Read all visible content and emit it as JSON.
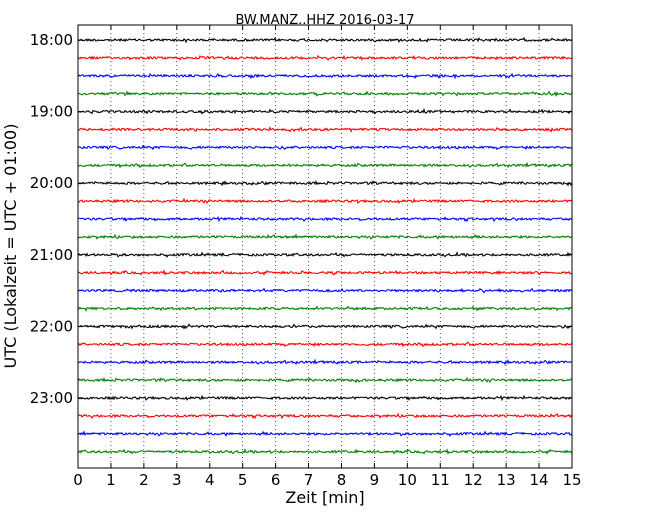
{
  "chart_data": {
    "type": "line",
    "title": "BW.MANZ..HHZ 2016-03-17",
    "xlabel": "Zeit  [min]",
    "ylabel": "UTC (Lokalzeit = UTC + 01:00)",
    "xlim": [
      0,
      15
    ],
    "x_ticks": [
      "0",
      "1",
      "2",
      "3",
      "4",
      "5",
      "6",
      "7",
      "8",
      "9",
      "10",
      "11",
      "12",
      "13",
      "14",
      "15"
    ],
    "y_ticks": [
      "18:00",
      "19:00",
      "20:00",
      "21:00",
      "22:00",
      "23:00"
    ],
    "grid": "vertical dotted",
    "trace_colors": [
      "#000000",
      "#ff0000",
      "#0000ff",
      "#008000"
    ],
    "series": [
      {
        "start": "18:00",
        "color": "#000000"
      },
      {
        "start": "18:15",
        "color": "#ff0000"
      },
      {
        "start": "18:30",
        "color": "#0000ff"
      },
      {
        "start": "18:45",
        "color": "#008000"
      },
      {
        "start": "19:00",
        "color": "#000000"
      },
      {
        "start": "19:15",
        "color": "#ff0000"
      },
      {
        "start": "19:30",
        "color": "#0000ff"
      },
      {
        "start": "19:45",
        "color": "#008000"
      },
      {
        "start": "20:00",
        "color": "#000000"
      },
      {
        "start": "20:15",
        "color": "#ff0000"
      },
      {
        "start": "20:30",
        "color": "#0000ff"
      },
      {
        "start": "20:45",
        "color": "#008000"
      },
      {
        "start": "21:00",
        "color": "#000000"
      },
      {
        "start": "21:15",
        "color": "#ff0000"
      },
      {
        "start": "21:30",
        "color": "#0000ff"
      },
      {
        "start": "21:45",
        "color": "#008000"
      },
      {
        "start": "22:00",
        "color": "#000000"
      },
      {
        "start": "22:15",
        "color": "#ff0000"
      },
      {
        "start": "22:30",
        "color": "#0000ff"
      },
      {
        "start": "22:45",
        "color": "#008000"
      },
      {
        "start": "23:00",
        "color": "#000000"
      },
      {
        "start": "23:15",
        "color": "#ff0000"
      },
      {
        "start": "23:30",
        "color": "#0000ff"
      },
      {
        "start": "23:45",
        "color": "#008000"
      }
    ]
  }
}
